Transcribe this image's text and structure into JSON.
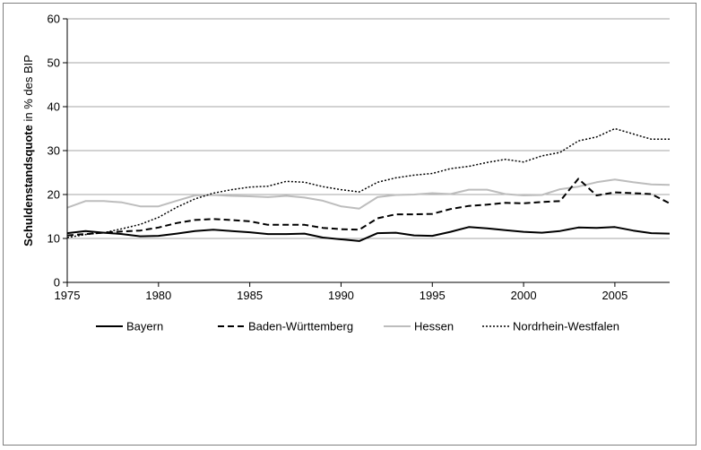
{
  "chart_data": {
    "type": "line",
    "title": "",
    "xlabel": "",
    "ylabel": {
      "bold": "Schuldenstandsquote",
      "rest": " in % des BIP"
    },
    "xlim": [
      1975,
      2008
    ],
    "ylim": [
      0,
      60
    ],
    "x_ticks": [
      1975,
      1980,
      1985,
      1990,
      1995,
      2000,
      2005
    ],
    "x_tick_labels": [
      "1975",
      "1980",
      "1985",
      "1990",
      "1995",
      "2000",
      "2005"
    ],
    "y_ticks": [
      0,
      10,
      20,
      30,
      40,
      50,
      60
    ],
    "y_tick_labels": [
      "0",
      "10",
      "20",
      "30",
      "40",
      "50",
      "60"
    ],
    "grid": "horizontal",
    "legend_position": "bottom",
    "x": [
      1975,
      1976,
      1977,
      1978,
      1979,
      1980,
      1981,
      1982,
      1983,
      1984,
      1985,
      1986,
      1987,
      1988,
      1989,
      1990,
      1991,
      1992,
      1993,
      1994,
      1995,
      1996,
      1997,
      1998,
      1999,
      2000,
      2001,
      2002,
      2003,
      2004,
      2005,
      2006,
      2007,
      2008
    ],
    "series": [
      {
        "name": "Bayern",
        "color": "#000000",
        "style": "solid",
        "values": [
          11.2,
          11.7,
          11.3,
          11.0,
          10.5,
          10.6,
          11.1,
          11.7,
          12.0,
          11.7,
          11.4,
          11.0,
          11.0,
          11.1,
          10.2,
          9.8,
          9.4,
          11.2,
          11.3,
          10.7,
          10.6,
          11.5,
          12.6,
          12.3,
          11.9,
          11.5,
          11.3,
          11.7,
          12.5,
          12.4,
          12.6,
          11.8,
          11.2,
          11.1
        ]
      },
      {
        "name": "Baden-Württemberg",
        "color": "#000000",
        "style": "dashed",
        "values": [
          10.7,
          11.0,
          11.3,
          11.6,
          11.8,
          12.5,
          13.5,
          14.2,
          14.4,
          14.2,
          13.9,
          13.1,
          13.1,
          13.1,
          12.4,
          12.1,
          12.0,
          14.6,
          15.5,
          15.5,
          15.6,
          16.7,
          17.4,
          17.7,
          18.1,
          18.0,
          18.3,
          18.5,
          23.6,
          19.8,
          20.5,
          20.3,
          20.1,
          18.0
        ]
      },
      {
        "name": "Hessen",
        "color": "#bdbdbd",
        "style": "solid",
        "values": [
          17.0,
          18.5,
          18.5,
          18.2,
          17.3,
          17.3,
          18.6,
          19.8,
          19.9,
          19.7,
          19.6,
          19.4,
          19.7,
          19.3,
          18.6,
          17.3,
          16.8,
          19.4,
          19.9,
          20.0,
          20.3,
          20.1,
          21.1,
          21.1,
          20.1,
          19.8,
          19.9,
          21.2,
          21.8,
          22.8,
          23.4,
          22.8,
          22.3,
          22.2
        ]
      },
      {
        "name": "Nordrhein-Westfalen",
        "color": "#000000",
        "style": "dotted",
        "values": [
          10.2,
          10.9,
          11.3,
          12.2,
          13.2,
          14.8,
          17.1,
          19.0,
          20.3,
          21.1,
          21.7,
          21.9,
          23.0,
          22.8,
          21.8,
          21.1,
          20.6,
          22.8,
          23.8,
          24.4,
          24.8,
          25.9,
          26.4,
          27.3,
          28.0,
          27.4,
          28.8,
          29.6,
          32.2,
          33.1,
          35.0,
          33.8,
          32.6,
          32.6
        ]
      }
    ]
  }
}
